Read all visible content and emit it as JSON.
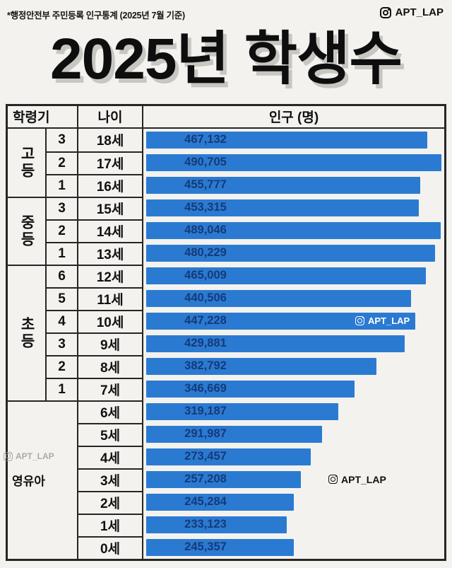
{
  "page": {
    "source_note": "*행정안전부 주민등록 인구통계 (2025년 7월 기준)",
    "title": "2025년 학생수",
    "brand": "APT_LAP"
  },
  "table": {
    "col_group_header": "학령기",
    "col_age_header": "나이",
    "col_value_header": "인구 (명)"
  },
  "watermarks": {
    "on_bar": "APT_LAP",
    "mid_right": "APT_LAP",
    "faint_left": "APT_LAP"
  },
  "colors": {
    "background": "#f3f2ee",
    "bar": "#2b7ad2",
    "bar_value_text": "#153a78",
    "border": "#262626",
    "title_shadow": "#c8c6c0"
  },
  "chart_data": {
    "type": "bar",
    "orientation": "horizontal",
    "title": "2025년 학생수",
    "source": "*행정안전부 주민등록 인구통계 (2025년 7월 기준)",
    "value_axis_label": "인구 (명)",
    "xlim": [
      0,
      500000
    ],
    "groups": [
      {
        "label": "고등",
        "rows": [
          {
            "grade": "3",
            "age": "18세",
            "value": 467132,
            "display": "467,132"
          },
          {
            "grade": "2",
            "age": "17세",
            "value": 490705,
            "display": "490,705"
          },
          {
            "grade": "1",
            "age": "16세",
            "value": 455777,
            "display": "455,777"
          }
        ]
      },
      {
        "label": "중등",
        "rows": [
          {
            "grade": "3",
            "age": "15세",
            "value": 453315,
            "display": "453,315"
          },
          {
            "grade": "2",
            "age": "14세",
            "value": 489046,
            "display": "489,046"
          },
          {
            "grade": "1",
            "age": "13세",
            "value": 480229,
            "display": "480,229"
          }
        ]
      },
      {
        "label": "초등",
        "rows": [
          {
            "grade": "6",
            "age": "12세",
            "value": 465009,
            "display": "465,009"
          },
          {
            "grade": "5",
            "age": "11세",
            "value": 440506,
            "display": "440,506"
          },
          {
            "grade": "4",
            "age": "10세",
            "value": 447228,
            "display": "447,228",
            "watermark": "on_bar_white"
          },
          {
            "grade": "3",
            "age": "9세",
            "value": 429881,
            "display": "429,881"
          },
          {
            "grade": "2",
            "age": "8세",
            "value": 382792,
            "display": "382,792"
          },
          {
            "grade": "1",
            "age": "7세",
            "value": 346669,
            "display": "346,669"
          }
        ]
      },
      {
        "label": "영유아",
        "rows": [
          {
            "grade": "",
            "age": "6세",
            "value": 319187,
            "display": "319,187"
          },
          {
            "grade": "",
            "age": "5세",
            "value": 291987,
            "display": "291,987"
          },
          {
            "grade": "",
            "age": "4세",
            "value": 273457,
            "display": "273,457"
          },
          {
            "grade": "",
            "age": "3세",
            "value": 257208,
            "display": "257,208",
            "watermark": "right_black"
          },
          {
            "grade": "",
            "age": "2세",
            "value": 245284,
            "display": "245,284"
          },
          {
            "grade": "",
            "age": "1세",
            "value": 233123,
            "display": "233,123"
          },
          {
            "grade": "",
            "age": "0세",
            "value": 245357,
            "display": "245,357"
          }
        ]
      }
    ]
  }
}
